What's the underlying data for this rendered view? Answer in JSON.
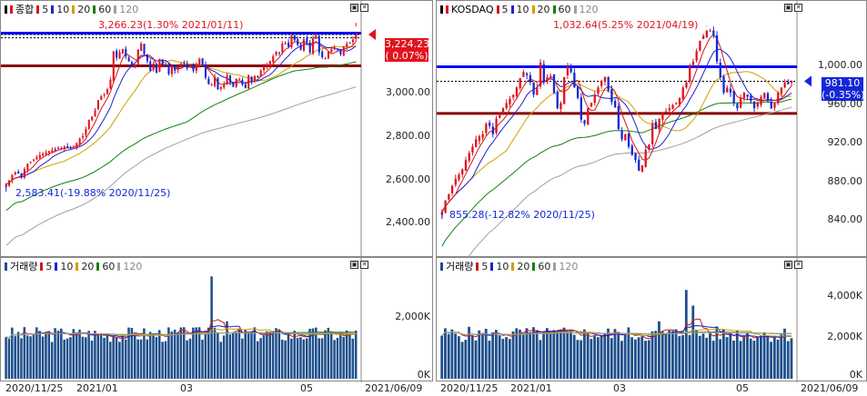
{
  "colors": {
    "up": "#e0141e",
    "down": "#1428d8",
    "ma5": "#d01818",
    "ma10": "#2020d0",
    "ma20": "#d0a000",
    "ma60": "#108010",
    "ma120": "#a0a0a0",
    "support_line": "#8b0000",
    "resistance_line": "#0000ff",
    "volume_bar": "#1e4f8c"
  },
  "left": {
    "price_legend": {
      "ticker": "종합",
      "ma": [
        "5",
        "10",
        "20",
        "60",
        "120"
      ]
    },
    "volume_legend": {
      "ticker": "거래량",
      "ma": [
        "5",
        "10",
        "20",
        "60",
        "120"
      ]
    },
    "high_annotation": "3,266.23(1.30% 2021/01/11)",
    "low_annotation": "2,583.41(-19.88% 2020/11/25)",
    "current_price": "3,224.23",
    "current_change": "( 0.07%)",
    "y_ticks": [
      "3,000.00",
      "2,800.00",
      "2,600.00",
      "2,400.00"
    ],
    "vol_ticks": [
      "2,000K",
      "0K"
    ],
    "x_ticks": [
      "2020/11/25",
      "2021/01",
      "03",
      "05",
      "2021/06/09"
    ]
  },
  "right": {
    "price_legend": {
      "ticker": "KOSDAQ",
      "ma": [
        "5",
        "10",
        "20",
        "60",
        "120"
      ]
    },
    "volume_legend": {
      "ticker": "거래량",
      "ma": [
        "5",
        "10",
        "20",
        "60",
        "120"
      ]
    },
    "high_annotation": "1,032.64(5.25% 2021/04/19)",
    "low_annotation": "855.28(-12.82% 2020/11/25)",
    "current_price": "981.10",
    "current_change": "(-0.35%)",
    "y_ticks": [
      "1,000.00",
      "960.00",
      "920.00",
      "880.00",
      "840.00"
    ],
    "vol_ticks": [
      "4,000K",
      "2,000K",
      "0K"
    ],
    "x_ticks": [
      "2020/11/25",
      "2021/01",
      "03",
      "05",
      "2021/06/09"
    ]
  },
  "chart_data": [
    {
      "type": "candlestick",
      "title": "종합",
      "ylim": [
        2320,
        3290
      ],
      "support": 3090,
      "resistance": 3230,
      "high": {
        "value": 3266.23,
        "date": "2021/01/11"
      },
      "low": {
        "value": 2583.41,
        "date": "2020/11/25"
      },
      "last": 3224.23,
      "closes": [
        2583,
        2600,
        2625,
        2635,
        2630,
        2617,
        2650,
        2672,
        2680,
        2690,
        2700,
        2710,
        2715,
        2720,
        2726,
        2730,
        2735,
        2738,
        2740,
        2745,
        2742,
        2738,
        2745,
        2760,
        2780,
        2790,
        2820,
        2860,
        2873,
        2900,
        2944,
        2960,
        2968,
        2990,
        3031,
        3152,
        3125,
        3148,
        3162,
        3130,
        3109,
        3085,
        3095,
        3160,
        3185,
        3140,
        3110,
        3069,
        3100,
        3060,
        3120,
        3096,
        3091,
        3056,
        3087,
        3070,
        3082,
        3100,
        3098,
        3079,
        3088,
        3070,
        3095,
        3120,
        3096,
        3040,
        3012,
        3010,
        3043,
        2990,
        3000,
        3012,
        3050,
        3020,
        3001,
        3034,
        3035,
        3010,
        2995,
        3050,
        3020,
        3048,
        3041,
        3070,
        3087,
        3090,
        3111,
        3131,
        3150,
        3146,
        3185,
        3188,
        3172,
        3220,
        3200,
        3180,
        3160,
        3204,
        3190,
        3147,
        3209,
        3220,
        3147,
        3127,
        3122,
        3149,
        3162,
        3170,
        3160,
        3140,
        3173,
        3185,
        3188,
        3203,
        3224
      ]
    },
    {
      "type": "candlestick",
      "title": "KOSDAQ",
      "ylim": [
        822,
        1041
      ],
      "support": 950,
      "resistance": 995,
      "high": {
        "value": 1032.64,
        "date": "2021/04/19"
      },
      "low": {
        "value": 855.28,
        "date": "2020/11/25"
      },
      "last": 981.1,
      "closes": [
        855,
        866,
        872,
        880,
        887,
        891,
        896,
        905,
        912,
        918,
        925,
        928,
        930,
        940,
        938,
        930,
        945,
        950,
        955,
        960,
        964,
        968,
        975,
        984,
        990,
        987,
        980,
        968,
        975,
        999,
        980,
        985,
        986,
        970,
        955,
        960,
        985,
        995,
        990,
        975,
        965,
        944,
        940,
        955,
        960,
        968,
        975,
        981,
        985,
        972,
        961,
        956,
        935,
        925,
        930,
        918,
        910,
        905,
        895,
        900,
        915,
        920,
        940,
        935,
        945,
        950,
        952,
        955,
        958,
        960,
        965,
        975,
        980,
        995,
        1000,
        1010,
        1020,
        1025,
        1030,
        1030,
        1025,
        1000,
        985,
        970,
        975,
        970,
        960,
        955,
        965,
        970,
        966,
        962,
        955,
        960,
        966,
        970,
        962,
        955,
        960,
        970,
        975,
        980,
        978,
        981
      ]
    }
  ]
}
